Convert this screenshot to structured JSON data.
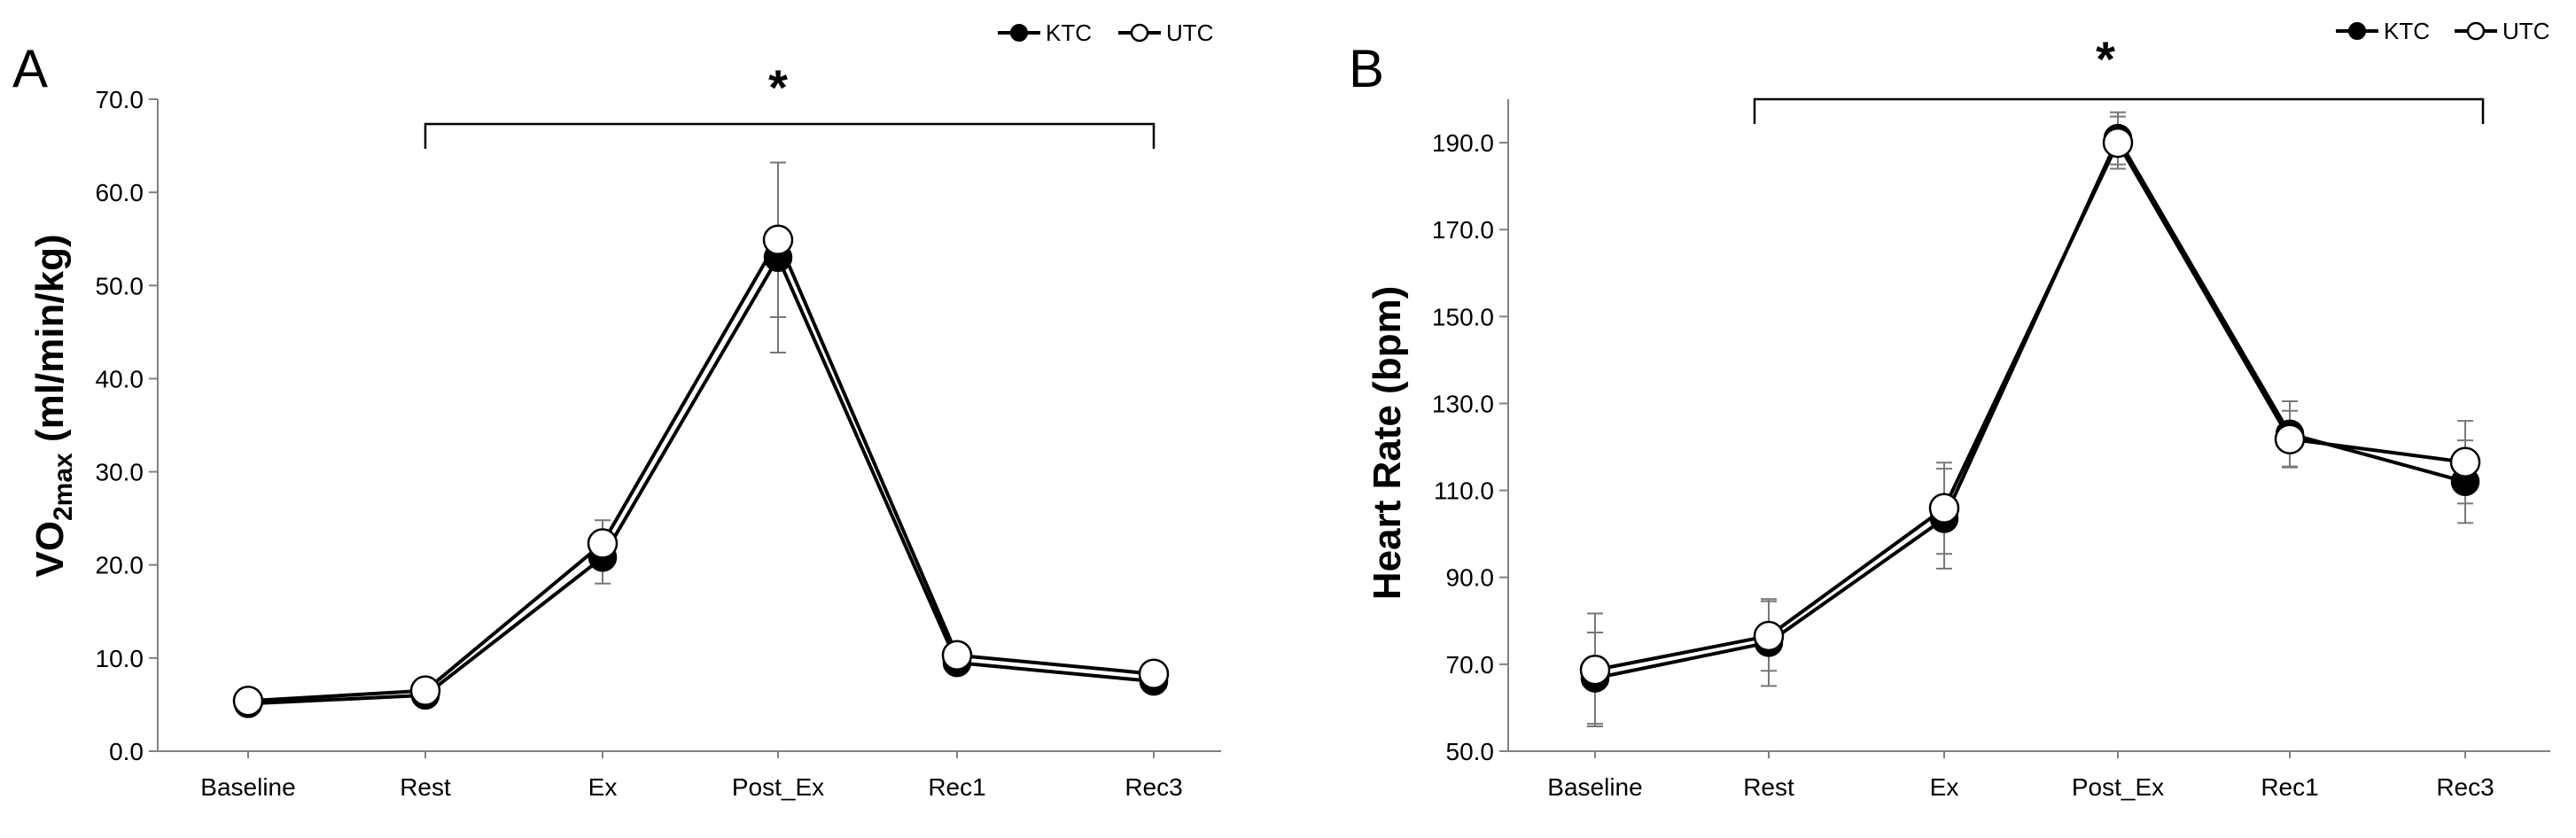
{
  "chart_data": [
    {
      "type": "line",
      "panel_label": "A",
      "categories": [
        "Baseline",
        "Rest",
        "Ex",
        "Post_Ex",
        "Rec1",
        "Rec3"
      ],
      "ylabel": "VO2max (ml/min/kg)",
      "ylabel_parts": {
        "main": "VO",
        "sub": "2max",
        "units": " (ml/min/kg)"
      },
      "ylim": [
        0,
        70
      ],
      "yticks": [
        "0.0",
        "10.0",
        "20.0",
        "30.0",
        "40.0",
        "50.0",
        "60.0",
        "70.0"
      ],
      "significance": "*",
      "significance_span": [
        "Rest",
        "Rec3"
      ],
      "legend": [
        "KTC",
        "UTC"
      ],
      "series": [
        {
          "name": "KTC",
          "marker": "filled",
          "values": [
            5.1,
            6.0,
            20.8,
            53.0,
            9.5,
            7.5
          ],
          "errors": [
            0.3,
            0.4,
            2.8,
            10.2,
            1.0,
            0.8
          ]
        },
        {
          "name": "UTC",
          "marker": "open",
          "values": [
            5.4,
            6.5,
            22.3,
            54.9,
            10.3,
            8.3
          ],
          "errors": [
            0.3,
            0.4,
            2.5,
            8.3,
            1.0,
            1.2
          ]
        }
      ]
    },
    {
      "type": "line",
      "panel_label": "B",
      "categories": [
        "Baseline",
        "Rest",
        "Ex",
        "Post_Ex",
        "Rec1",
        "Rec3"
      ],
      "ylabel": "Heart Rate (bpm)",
      "ylim": [
        50,
        200
      ],
      "yticks": [
        "50.0",
        "70.0",
        "90.0",
        "110.0",
        "130.0",
        "150.0",
        "170.0",
        "190.0"
      ],
      "significance": "*",
      "significance_span": [
        "Rest",
        "Rec3"
      ],
      "legend": [
        "KTC",
        "UTC"
      ],
      "series": [
        {
          "name": "KTC",
          "marker": "filled",
          "values": [
            66.8,
            75.0,
            103.5,
            191.0,
            123.0,
            112.0
          ],
          "errors": [
            10.5,
            10.0,
            11.5,
            6.0,
            7.5,
            9.5
          ]
        },
        {
          "name": "UTC",
          "marker": "open",
          "values": [
            68.7,
            76.5,
            105.9,
            190.0,
            121.8,
            116.5
          ],
          "errors": [
            13.0,
            8.0,
            10.5,
            6.0,
            6.5,
            9.5
          ]
        }
      ]
    }
  ]
}
